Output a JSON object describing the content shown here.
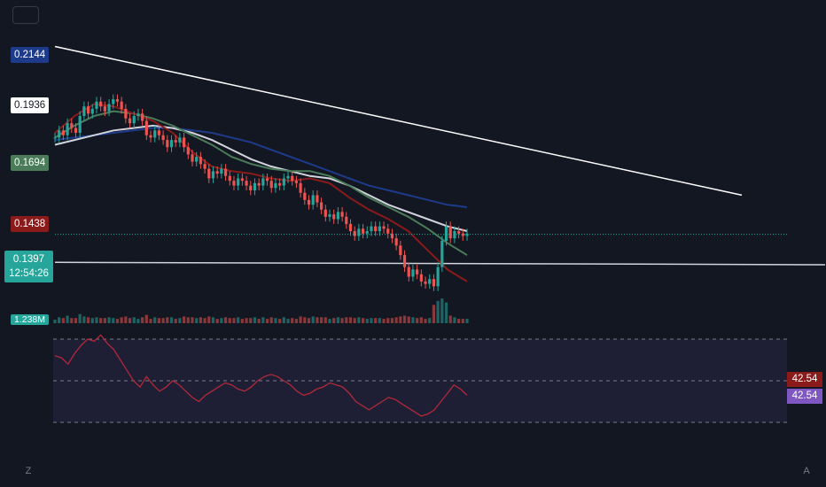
{
  "chart_data": {
    "type": "candlestick",
    "close": [
      0.18,
      0.183,
      0.181,
      0.186,
      0.184,
      0.182,
      0.189,
      0.193,
      0.19,
      0.192,
      0.195,
      0.193,
      0.191,
      0.194,
      0.196,
      0.195,
      0.192,
      0.188,
      0.186,
      0.189,
      0.19,
      0.187,
      0.181,
      0.18,
      0.183,
      0.181,
      0.179,
      0.176,
      0.179,
      0.178,
      0.18,
      0.176,
      0.173,
      0.17,
      0.172,
      0.169,
      0.167,
      0.163,
      0.166,
      0.165,
      0.167,
      0.164,
      0.162,
      0.16,
      0.163,
      0.162,
      0.16,
      0.158,
      0.161,
      0.16,
      0.163,
      0.162,
      0.159,
      0.161,
      0.16,
      0.163,
      0.164,
      0.162,
      0.161,
      0.157,
      0.154,
      0.152,
      0.156,
      0.153,
      0.15,
      0.147,
      0.148,
      0.146,
      0.149,
      0.147,
      0.144,
      0.141,
      0.139,
      0.142,
      0.14,
      0.141,
      0.143,
      0.141,
      0.143,
      0.142,
      0.14,
      0.138,
      0.135,
      0.131,
      0.126,
      0.122,
      0.125,
      0.123,
      0.12,
      0.119,
      0.121,
      0.118,
      0.126,
      0.137,
      0.143,
      0.138,
      0.141,
      0.14,
      0.139,
      0.14
    ],
    "ma_series": [
      {
        "color": "#1e3a8a",
        "values": [
          0.179,
          0.18,
          0.181,
          0.182,
          0.183,
          0.184,
          0.184,
          0.183,
          0.182,
          0.18,
          0.178,
          0.175,
          0.172,
          0.169,
          0.166,
          0.163,
          0.16,
          0.158,
          0.156,
          0.154,
          0.152,
          0.151
        ]
      },
      {
        "color": "#d1d4dc",
        "values": [
          0.177,
          0.179,
          0.181,
          0.183,
          0.184,
          0.185,
          0.184,
          0.182,
          0.179,
          0.175,
          0.171,
          0.168,
          0.166,
          0.164,
          0.163,
          0.16,
          0.156,
          0.152,
          0.149,
          0.146,
          0.143,
          0.141
        ]
      },
      {
        "color": "#4a7c59",
        "values": [
          0.18,
          0.185,
          0.189,
          0.191,
          0.19,
          0.188,
          0.185,
          0.181,
          0.177,
          0.172,
          0.169,
          0.167,
          0.166,
          0.166,
          0.164,
          0.16,
          0.155,
          0.151,
          0.147,
          0.142,
          0.136,
          0.131
        ]
      },
      {
        "color": "#8b1a1a",
        "values": [
          0.182,
          0.189,
          0.194,
          0.193,
          0.19,
          0.187,
          0.182,
          0.174,
          0.168,
          0.166,
          0.165,
          0.163,
          0.162,
          0.163,
          0.161,
          0.155,
          0.15,
          0.146,
          0.141,
          0.133,
          0.125,
          0.12
        ]
      }
    ],
    "trendlines": [
      {
        "color": "#ffffff",
        "from": [
          0,
          0.218
        ],
        "to": [
          165,
          0.156
        ]
      },
      {
        "color": "#d1d4dc",
        "from": [
          0,
          0.128
        ],
        "to": [
          185,
          0.127
        ]
      }
    ],
    "volume_label": "1.238M",
    "rsi": [
      62,
      61,
      58,
      63,
      67,
      70,
      69,
      72,
      68,
      65,
      60,
      55,
      50,
      47,
      52,
      48,
      45,
      47,
      50,
      48,
      45,
      42,
      40,
      43,
      45,
      47,
      49,
      48,
      46,
      45,
      47,
      50,
      52,
      53,
      52,
      50,
      48,
      45,
      43,
      44,
      46,
      47,
      49,
      48,
      47,
      44,
      40,
      38,
      36,
      38,
      40,
      42,
      41,
      39,
      37,
      35,
      33,
      34,
      36,
      40,
      44,
      48,
      46,
      43
    ],
    "rsi_levels": [
      70,
      50,
      30
    ],
    "ylim": [
      0.11,
      0.23
    ],
    "price_labels": [
      {
        "text": "0.2144",
        "value": 0.2144,
        "bg": "#1e3a8a",
        "color": "#ffffff"
      },
      {
        "text": "0.1936",
        "value": 0.1936,
        "bg": "#ffffff",
        "color": "#131722"
      },
      {
        "text": "0.1694",
        "value": 0.1694,
        "bg": "#4a7c59",
        "color": "#ffffff"
      },
      {
        "text": "0.1438",
        "value": 0.1438,
        "bg": "#8b1a1a",
        "color": "#ffffff"
      }
    ],
    "last_price": {
      "price": "0.1397",
      "countdown": "12:54:26",
      "bg": "#26a69a"
    },
    "rsi_labels": [
      {
        "text": "42.54",
        "bg": "#8b1a1a"
      },
      {
        "text": "42.54",
        "bg": "#7e57c2"
      }
    ]
  },
  "corner_buttons": {
    "left": "Z",
    "right": "A"
  },
  "colors": {
    "up": "#26a69a",
    "down": "#ef5350",
    "rsi_line": "#b2283a",
    "rsi_band": "#1e1f35"
  }
}
